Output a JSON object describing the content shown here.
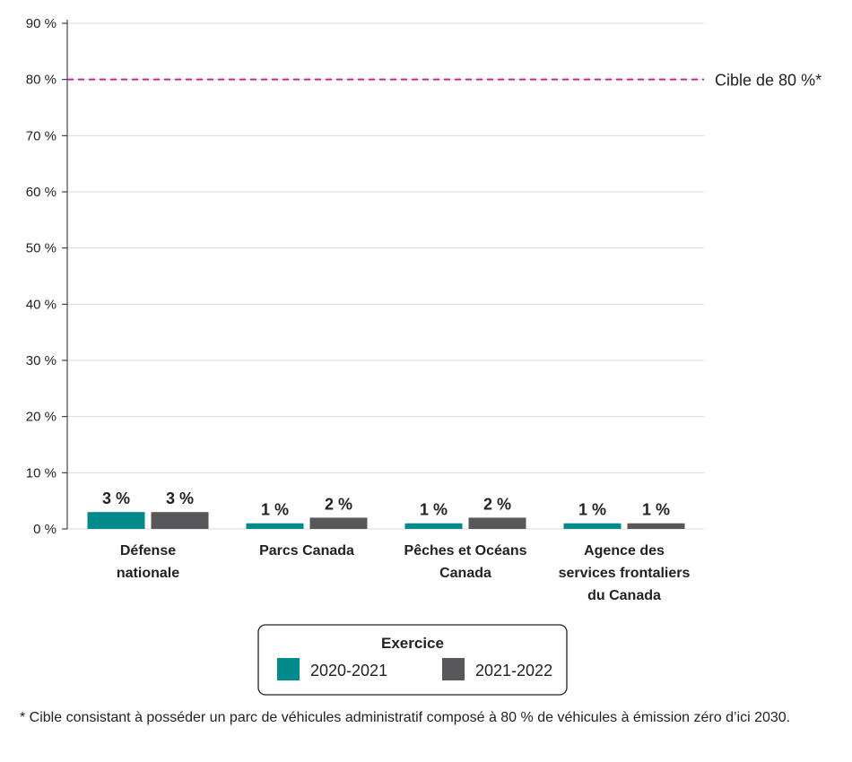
{
  "chart_data": {
    "type": "bar",
    "categories": [
      [
        "Défense",
        "nationale"
      ],
      [
        "Parcs Canada"
      ],
      [
        "Pêches et Océans",
        "Canada"
      ],
      [
        "Agence des",
        "services frontaliers",
        "du Canada"
      ]
    ],
    "series": [
      {
        "name": "2020-2021",
        "values": [
          3,
          1,
          1,
          1
        ],
        "color": "#028a8a"
      },
      {
        "name": "2021-2022",
        "values": [
          3,
          2,
          2,
          1
        ],
        "color": "#58585a"
      }
    ],
    "data_labels": [
      [
        "3 %",
        "1 %",
        "1 %",
        "1 %"
      ],
      [
        "3 %",
        "2 %",
        "2 %",
        "1 %"
      ]
    ],
    "ylim": [
      0,
      90
    ],
    "yticks": [
      0,
      10,
      20,
      30,
      40,
      50,
      60,
      70,
      80,
      90
    ],
    "ytick_labels": [
      "0 %",
      "10 %",
      "20 %",
      "30 %",
      "40 %",
      "50 %",
      "60 %",
      "70 %",
      "80 %",
      "90 %"
    ],
    "grid": true,
    "target": {
      "value": 80,
      "label": "Cible de 80 %*",
      "color": "#c0268c",
      "style": "dashed"
    },
    "legend": {
      "title": "Exercice",
      "placement": "bottom"
    }
  },
  "footnote": "* Cible consistant à posséder un parc de véhicules administratif composé à 80 % de véhicules à émission zéro d’ici 2030."
}
